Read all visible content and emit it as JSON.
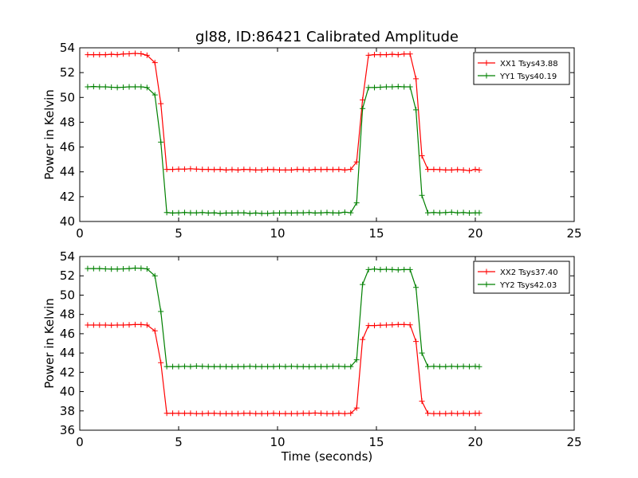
{
  "title": "gl88, ID:86421 Calibrated Amplitude",
  "chart_data": [
    {
      "type": "line",
      "title": "gl88, ID:86421 Calibrated Amplitude",
      "xlabel": "",
      "ylabel": "Power in Kelvin",
      "xlim": [
        0,
        25
      ],
      "ylim": [
        40,
        54
      ],
      "xticks": [
        0,
        5,
        10,
        15,
        20,
        25
      ],
      "yticks": [
        40,
        42,
        44,
        46,
        48,
        50,
        52,
        54
      ],
      "grid": false,
      "legend_position": "top-right",
      "x": [
        0.4,
        0.7,
        1.0,
        1.3,
        1.6,
        1.9,
        2.2,
        2.5,
        2.8,
        3.1,
        3.4,
        3.8,
        4.1,
        4.4,
        4.7,
        5.0,
        5.3,
        5.6,
        5.9,
        6.2,
        6.5,
        6.8,
        7.1,
        7.4,
        7.7,
        8.0,
        8.3,
        8.6,
        8.9,
        9.2,
        9.5,
        9.8,
        10.1,
        10.4,
        10.7,
        11.0,
        11.3,
        11.6,
        11.9,
        12.2,
        12.5,
        12.8,
        13.1,
        13.4,
        13.7,
        14.0,
        14.3,
        14.6,
        14.9,
        15.2,
        15.5,
        15.8,
        16.1,
        16.4,
        16.7,
        17.0,
        17.3,
        17.6,
        17.9,
        18.2,
        18.5,
        18.8,
        19.1,
        19.4,
        19.7,
        20.0,
        20.2
      ],
      "series": [
        {
          "name": "XX1 Tsys43.88",
          "color": "#ff0000",
          "values": [
            53.45,
            53.45,
            53.45,
            53.45,
            53.48,
            53.45,
            53.5,
            53.52,
            53.55,
            53.52,
            53.4,
            52.8,
            49.5,
            44.2,
            44.2,
            44.22,
            44.22,
            44.25,
            44.22,
            44.2,
            44.2,
            44.18,
            44.2,
            44.15,
            44.18,
            44.15,
            44.2,
            44.18,
            44.15,
            44.15,
            44.2,
            44.18,
            44.15,
            44.15,
            44.15,
            44.2,
            44.18,
            44.15,
            44.2,
            44.18,
            44.2,
            44.18,
            44.2,
            44.15,
            44.2,
            44.8,
            49.8,
            53.4,
            53.45,
            53.45,
            53.45,
            53.48,
            53.45,
            53.5,
            53.5,
            51.5,
            45.3,
            44.2,
            44.2,
            44.18,
            44.15,
            44.15,
            44.18,
            44.15,
            44.1,
            44.2,
            44.15
          ]
        },
        {
          "name": "YY1 Tsys40.19",
          "color": "#008000",
          "values": [
            50.85,
            50.88,
            50.85,
            50.85,
            50.82,
            50.8,
            50.82,
            50.85,
            50.85,
            50.85,
            50.8,
            50.2,
            46.4,
            40.72,
            40.68,
            40.7,
            40.72,
            40.7,
            40.7,
            40.72,
            40.68,
            40.7,
            40.65,
            40.68,
            40.68,
            40.7,
            40.7,
            40.65,
            40.68,
            40.65,
            40.65,
            40.68,
            40.68,
            40.7,
            40.68,
            40.7,
            40.7,
            40.72,
            40.68,
            40.7,
            40.72,
            40.7,
            40.68,
            40.75,
            40.7,
            41.5,
            49.1,
            50.8,
            50.8,
            50.82,
            50.85,
            50.85,
            50.88,
            50.85,
            50.85,
            49.0,
            42.1,
            40.7,
            40.72,
            40.7,
            40.72,
            40.75,
            40.7,
            40.72,
            40.68,
            40.7,
            40.7
          ]
        }
      ]
    },
    {
      "type": "line",
      "title": "",
      "xlabel": "Time (seconds)",
      "ylabel": "Power in Kelvin",
      "xlim": [
        0,
        25
      ],
      "ylim": [
        36,
        54
      ],
      "xticks": [
        0,
        5,
        10,
        15,
        20,
        25
      ],
      "yticks": [
        36,
        38,
        40,
        42,
        44,
        46,
        48,
        50,
        52,
        54
      ],
      "grid": false,
      "legend_position": "top-right",
      "x": [
        0.4,
        0.7,
        1.0,
        1.3,
        1.6,
        1.9,
        2.2,
        2.5,
        2.8,
        3.1,
        3.4,
        3.8,
        4.1,
        4.4,
        4.7,
        5.0,
        5.3,
        5.6,
        5.9,
        6.2,
        6.5,
        6.8,
        7.1,
        7.4,
        7.7,
        8.0,
        8.3,
        8.6,
        8.9,
        9.2,
        9.5,
        9.8,
        10.1,
        10.4,
        10.7,
        11.0,
        11.3,
        11.6,
        11.9,
        12.2,
        12.5,
        12.8,
        13.1,
        13.4,
        13.7,
        14.0,
        14.3,
        14.6,
        14.9,
        15.2,
        15.5,
        15.8,
        16.1,
        16.4,
        16.7,
        17.0,
        17.3,
        17.6,
        17.9,
        18.2,
        18.5,
        18.8,
        19.1,
        19.4,
        19.7,
        20.0,
        20.2
      ],
      "series": [
        {
          "name": "XX2 Tsys37.40",
          "color": "#ff0000",
          "values": [
            46.9,
            46.9,
            46.9,
            46.9,
            46.88,
            46.9,
            46.9,
            46.92,
            46.95,
            46.95,
            46.9,
            46.3,
            43.0,
            37.75,
            37.75,
            37.75,
            37.75,
            37.75,
            37.72,
            37.72,
            37.75,
            37.75,
            37.72,
            37.72,
            37.72,
            37.72,
            37.75,
            37.75,
            37.72,
            37.72,
            37.72,
            37.75,
            37.72,
            37.72,
            37.72,
            37.72,
            37.75,
            37.75,
            37.78,
            37.75,
            37.72,
            37.72,
            37.75,
            37.72,
            37.75,
            38.3,
            45.4,
            46.85,
            46.85,
            46.88,
            46.9,
            46.92,
            46.95,
            46.95,
            46.92,
            45.2,
            39.0,
            37.75,
            37.72,
            37.72,
            37.72,
            37.75,
            37.72,
            37.75,
            37.72,
            37.75,
            37.75
          ]
        },
        {
          "name": "YY2 Tsys42.03",
          "color": "#008000",
          "values": [
            52.75,
            52.75,
            52.75,
            52.72,
            52.7,
            52.7,
            52.72,
            52.75,
            52.8,
            52.78,
            52.72,
            52.0,
            48.3,
            42.6,
            42.6,
            42.6,
            42.62,
            42.6,
            42.65,
            42.62,
            42.6,
            42.6,
            42.6,
            42.6,
            42.58,
            42.6,
            42.6,
            42.62,
            42.6,
            42.6,
            42.6,
            42.6,
            42.62,
            42.6,
            42.62,
            42.6,
            42.6,
            42.58,
            42.6,
            42.6,
            42.6,
            42.62,
            42.62,
            42.6,
            42.6,
            43.3,
            51.1,
            52.65,
            52.7,
            52.65,
            52.68,
            52.65,
            52.62,
            52.65,
            52.65,
            50.8,
            44.0,
            42.6,
            42.62,
            42.6,
            42.6,
            42.62,
            42.6,
            42.62,
            42.6,
            42.62,
            42.58
          ]
        }
      ]
    }
  ]
}
